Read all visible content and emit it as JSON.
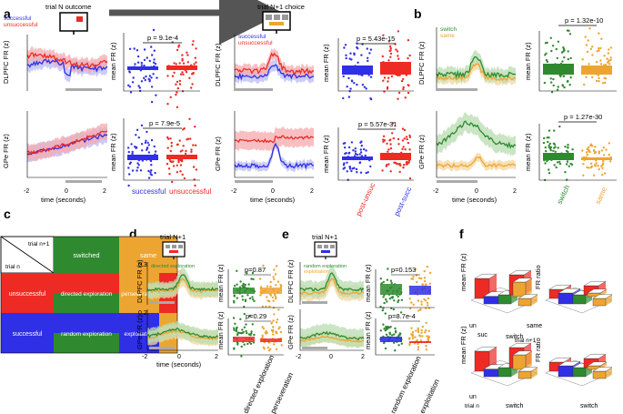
{
  "panel_labels": [
    "a",
    "b",
    "c",
    "d",
    "e",
    "f"
  ],
  "titles": {
    "trial_n_outcome": "trial N outcome",
    "trial_n1_choice": "trial N+1 choice",
    "trial_n1_d": "trial N+1",
    "trial_n1_e": "trial N+1"
  },
  "axes": {
    "dlpfc_fr": "DLPFC FR (z)",
    "gpe_fr": "GPe FR (z)",
    "mean_fr": "mean FR (z)",
    "time": "time (seconds)",
    "fr_ratio": "FR ratio"
  },
  "legends": {
    "a1": [
      "successful",
      "unsuccessful"
    ],
    "a2": [
      "successful",
      "unsuccessful"
    ],
    "b": [
      "switch",
      "same"
    ],
    "d": [
      "directed exploration",
      "perseveration"
    ],
    "e": [
      "random exploration",
      "exploitation"
    ]
  },
  "pvalues": {
    "a_dl_outcome": "p = 9.1e-4",
    "a_gp_outcome": "p = 7.9e-5",
    "a_dl_choice": "p = 5.43e-15",
    "a_gp_choice": "p = 5.57e-31",
    "b_dl": "p = 1.32e-10",
    "b_gp": "p = 1.27e-30",
    "d_dl": "p=0.87",
    "d_gp": "p=0.29",
    "e_dl": "p=0.153",
    "e_gp": "p=8.7e-4"
  },
  "xticklabels": {
    "a_outcome": [
      "successful",
      "unsuccessful"
    ],
    "a_choice": [
      "post-unsuc",
      "post-succ"
    ],
    "b": [
      "switch",
      "same"
    ],
    "d": [
      "directed exploration",
      "perseveration"
    ],
    "e": [
      "random exploration",
      "exploitation"
    ]
  },
  "table_c": {
    "corner_top": "trial n+1",
    "corner_bottom": "trial n",
    "col_headers": [
      "switched",
      "same"
    ],
    "row_headers": [
      "unsuccessful",
      "successful"
    ],
    "cells": [
      [
        "directed exploration",
        "perseveration"
      ],
      [
        "random exploration",
        "exploitation"
      ]
    ]
  },
  "panel_f": {
    "axis_labels": [
      "un",
      "suc",
      "switch",
      "same",
      "trial n",
      "trial n+1"
    ],
    "ratio_labels": [
      "0.86",
      "0.73"
    ]
  },
  "colors": {
    "blue": "#2f2fe6",
    "red": "#ee2a24",
    "green": "#2f8a2f",
    "orange": "#eda531",
    "pink": "#f5a9ad",
    "lightblue": "#b9bbf5",
    "lightgreen": "#b7dcb0",
    "lightorange": "#f3d79f"
  }
}
